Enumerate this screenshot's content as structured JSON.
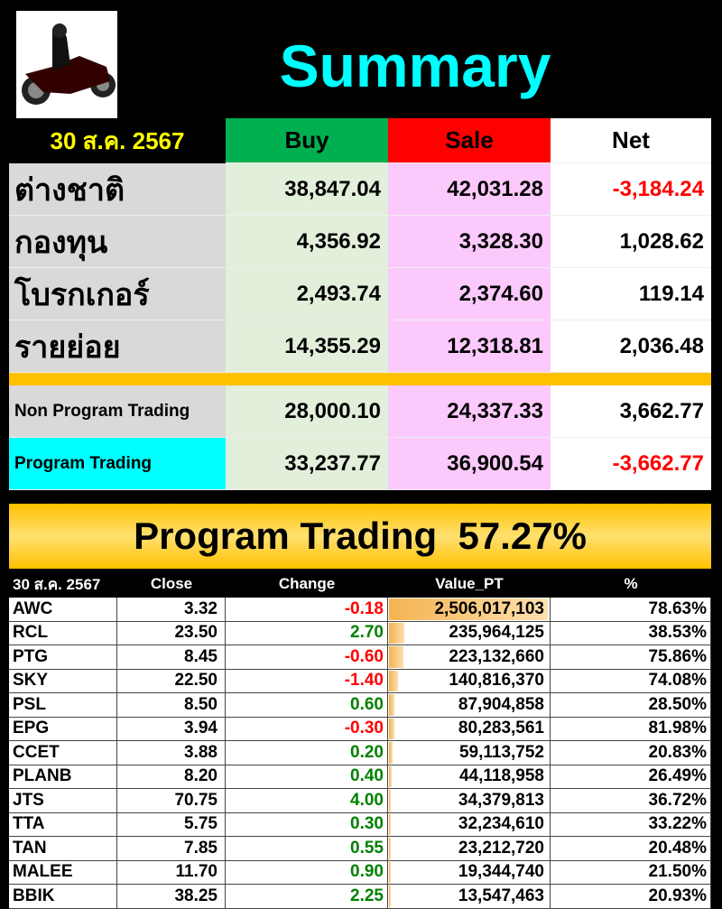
{
  "title": "Summary",
  "date": "30 ส.ค. 2567",
  "headers": {
    "buy": "Buy",
    "sale": "Sale",
    "net": "Net"
  },
  "colors": {
    "title": "#00ffff",
    "buy_header": "#00b050",
    "sale_header": "#ff0000",
    "date": "#ffff00",
    "program_label": "#00ffff"
  },
  "rows": [
    {
      "label": "ต่างชาติ",
      "buy": "38,847.04",
      "sale": "42,031.28",
      "net": "-3,184.24",
      "neg": true
    },
    {
      "label": "กองทุน",
      "buy": "4,356.92",
      "sale": "3,328.30",
      "net": "1,028.62",
      "neg": false
    },
    {
      "label": "โบรกเกอร์",
      "buy": "2,493.74",
      "sale": "2,374.60",
      "net": "119.14",
      "neg": false
    },
    {
      "label": "รายย่อย",
      "buy": "14,355.29",
      "sale": "12,318.81",
      "net": "2,036.48",
      "neg": false
    }
  ],
  "program_rows": [
    {
      "label": "Non Program Trading",
      "buy": "28,000.10",
      "sale": "24,337.33",
      "net": "3,662.77",
      "neg": false
    },
    {
      "label": "Program Trading",
      "buy": "33,237.77",
      "sale": "36,900.54",
      "net": "-3,662.77",
      "neg": true
    }
  ],
  "banner": "Program Trading  57.27%",
  "table": {
    "headers": [
      "30 ส.ค. 2567",
      "Close",
      "Change",
      "Value_PT",
      "%"
    ],
    "rows": [
      [
        "AWC",
        "3.32",
        "-0.18",
        "2,506,017,103",
        "78.63%"
      ],
      [
        "RCL",
        "23.50",
        "2.70",
        "235,964,125",
        "38.53%"
      ],
      [
        "PTG",
        "8.45",
        "-0.60",
        "223,132,660",
        "75.86%"
      ],
      [
        "SKY",
        "22.50",
        "-1.40",
        "140,816,370",
        "74.08%"
      ],
      [
        "PSL",
        "8.50",
        "0.60",
        "87,904,858",
        "28.50%"
      ],
      [
        "EPG",
        "3.94",
        "-0.30",
        "80,283,561",
        "81.98%"
      ],
      [
        "CCET",
        "3.88",
        "0.20",
        "59,113,752",
        "20.83%"
      ],
      [
        "PLANB",
        "8.20",
        "0.40",
        "44,118,958",
        "26.49%"
      ],
      [
        "JTS",
        "70.75",
        "4.00",
        "34,379,813",
        "36.72%"
      ],
      [
        "TTA",
        "5.75",
        "0.30",
        "32,234,610",
        "33.22%"
      ],
      [
        "TAN",
        "7.85",
        "0.55",
        "23,212,720",
        "20.48%"
      ],
      [
        "MALEE",
        "11.70",
        "0.90",
        "19,344,740",
        "21.50%"
      ],
      [
        "BBIK",
        "38.25",
        "2.25",
        "13,547,463",
        "20.93%"
      ]
    ]
  }
}
